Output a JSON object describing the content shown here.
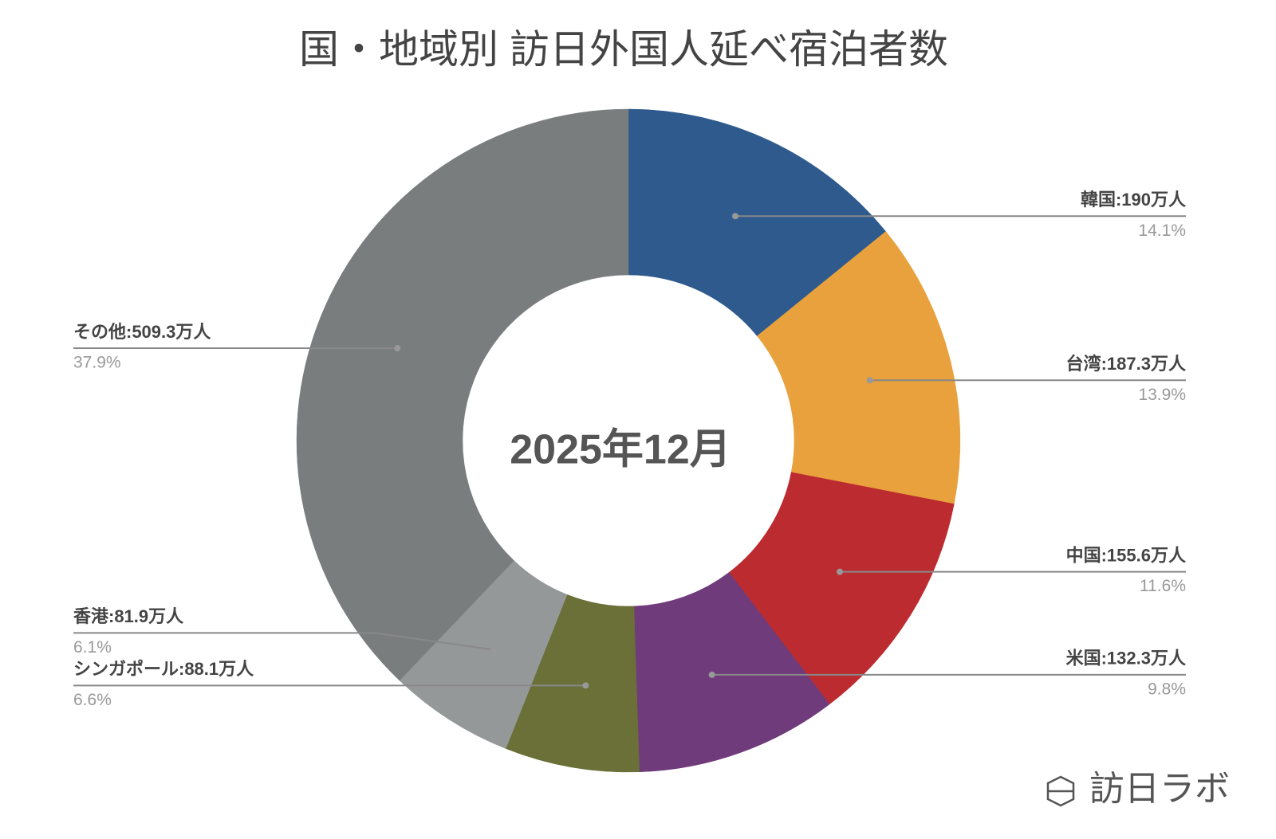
{
  "chart_data": {
    "type": "donut",
    "title": "国・地域別 訪日外国人延べ宿泊者数",
    "center_label": "2025年12月",
    "values": [
      190,
      187.3,
      155.6,
      132.3,
      88.1,
      81.9,
      509.3
    ],
    "value_labels": [
      "韓国:190万人",
      "台湾:187.3万人",
      "中国:155.6万人",
      "米国:132.3万人",
      "シンガポール:88.1万人",
      "香港:81.9万人",
      "その他:509.3万人"
    ],
    "percentage_labels": [
      "14.1%",
      "13.9%",
      "11.6%",
      "9.8%",
      "6.6%",
      "6.1%",
      "37.9%"
    ],
    "colors": [
      "#2e5a8e",
      "#e8a13c",
      "#bc2b30",
      "#6f3b7b",
      "#6a7038",
      "#959899",
      "#7a7d7e"
    ]
  },
  "brand": "訪日ラボ"
}
